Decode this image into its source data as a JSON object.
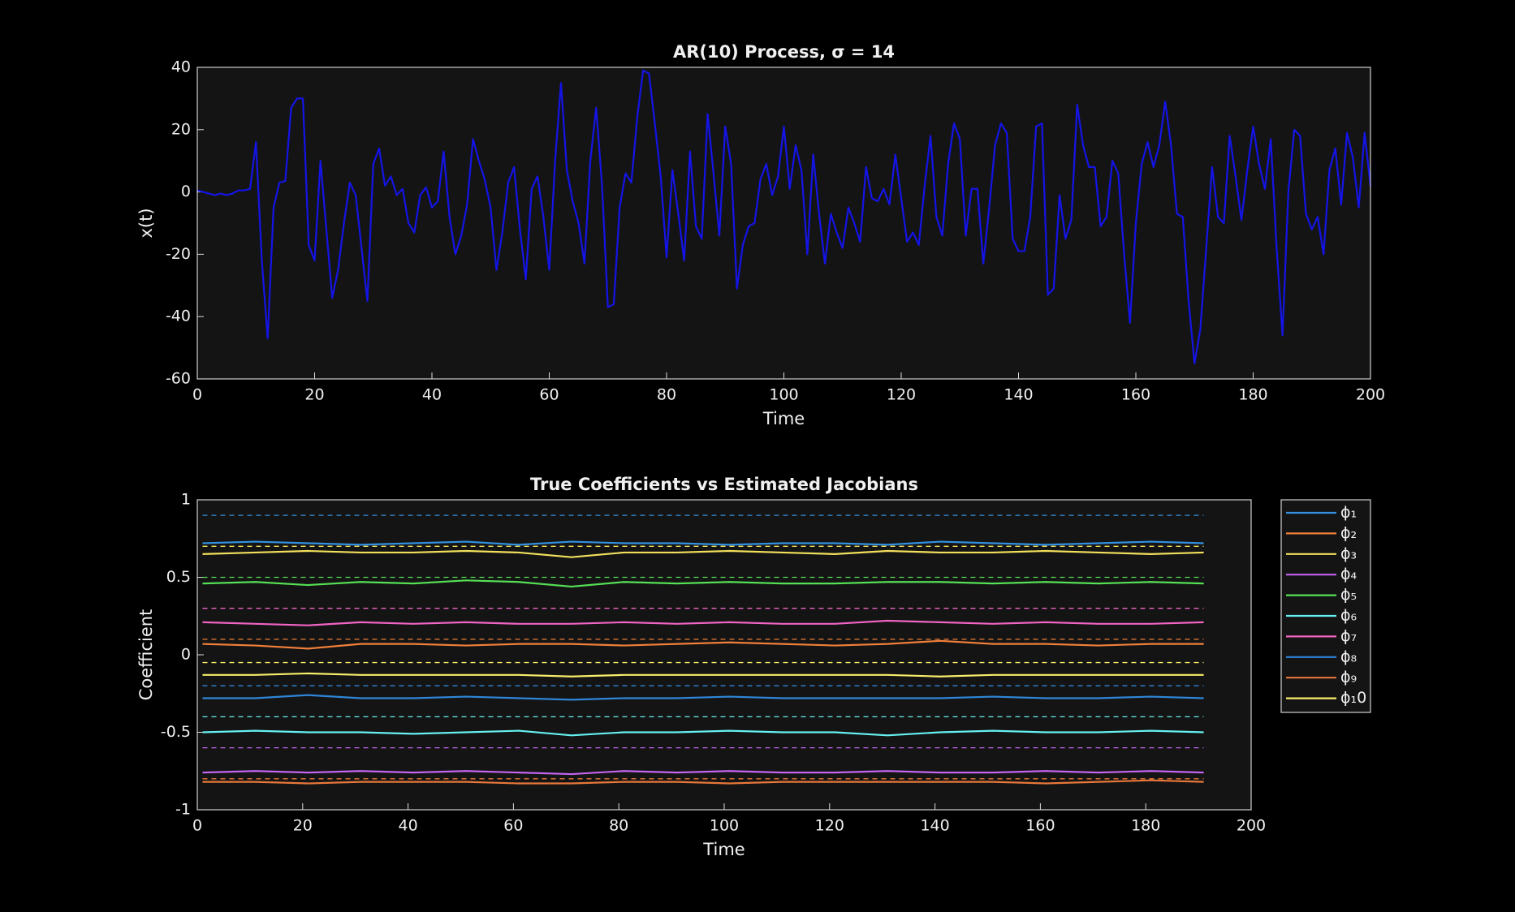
{
  "chart_data": [
    {
      "type": "line",
      "title": "AR(10)  Process,  σ  =  14",
      "xlabel": "Time",
      "ylabel": "x(t)",
      "xlim": [
        0,
        200
      ],
      "xticks": [
        0,
        20,
        40,
        60,
        80,
        100,
        120,
        140,
        160,
        180,
        200
      ],
      "ylim": [
        -60,
        40
      ],
      "yticks": [
        -60,
        -40,
        -20,
        0,
        20,
        40
      ],
      "x": [
        0,
        1,
        2,
        3,
        4,
        5,
        6,
        7,
        8,
        9,
        10,
        11,
        12,
        13,
        14,
        15,
        16,
        17,
        18,
        19,
        20,
        21,
        22,
        23,
        24,
        25,
        26,
        27,
        28,
        29,
        30,
        31,
        32,
        33,
        34,
        35,
        36,
        37,
        38,
        39,
        40,
        41,
        42,
        43,
        44,
        45,
        46,
        47,
        48,
        49,
        50,
        51,
        52,
        53,
        54,
        55,
        56,
        57,
        58,
        59,
        60,
        61,
        62,
        63,
        64,
        65,
        66,
        67,
        68,
        69,
        70,
        71,
        72,
        73,
        74,
        75,
        76,
        77,
        78,
        79,
        80,
        81,
        82,
        83,
        84,
        85,
        86,
        87,
        88,
        89,
        90,
        91,
        92,
        93,
        94,
        95,
        96,
        97,
        98,
        99,
        100,
        101,
        102,
        103,
        104,
        105,
        106,
        107,
        108,
        109,
        110,
        111,
        112,
        113,
        114,
        115,
        116,
        117,
        118,
        119,
        120,
        121,
        122,
        123,
        124,
        125,
        126,
        127,
        128,
        129,
        130,
        131,
        132,
        133,
        134,
        135,
        136,
        137,
        138,
        139,
        140,
        141,
        142,
        143,
        144,
        145,
        146,
        147,
        148,
        149,
        150,
        151,
        152,
        153,
        154,
        155,
        156,
        157,
        158,
        159,
        160,
        161,
        162,
        163,
        164,
        165,
        166,
        167,
        168,
        169,
        170,
        171,
        172,
        173,
        174,
        175,
        176,
        177,
        178,
        179,
        180,
        181,
        182,
        183,
        184,
        185,
        186,
        187,
        188,
        189,
        190,
        191,
        192,
        193,
        194,
        195,
        196,
        197,
        198,
        199,
        200
      ],
      "series": [
        {
          "color": "#1414e6",
          "values": [
            0.5,
            0,
            -0.5,
            -1,
            -0.5,
            -1,
            -0.5,
            0.5,
            0.5,
            1,
            16,
            -22,
            -47,
            -5,
            3,
            3.5,
            27,
            30,
            30,
            -17,
            -22,
            10,
            -12,
            -34,
            -25,
            -10,
            3,
            -1,
            -18,
            -35,
            9,
            14,
            2,
            5,
            -1,
            1,
            -10,
            -13,
            -1,
            1.5,
            -5,
            -3,
            13,
            -8,
            -20,
            -14,
            -4,
            17,
            10,
            4,
            -5,
            -25,
            -13,
            3,
            8,
            -12,
            -28,
            1,
            5,
            -8,
            -25,
            10,
            35,
            7,
            -3,
            -10,
            -23,
            10,
            27,
            2,
            -37,
            -36,
            -5,
            6,
            3,
            24,
            39,
            38,
            22,
            5,
            -21,
            7,
            -7,
            -22,
            13,
            -11,
            -15,
            25,
            6,
            -14,
            21,
            9,
            -31,
            -17,
            -11,
            -10,
            4,
            9,
            -1,
            5,
            21,
            1,
            15,
            7,
            -20,
            12,
            -7,
            -23,
            -7,
            -13,
            -18,
            -5,
            -10,
            -16,
            8,
            -2,
            -3,
            1,
            -4,
            12,
            -2,
            -16,
            -13,
            -17,
            2,
            18,
            -8,
            -14,
            9,
            22,
            17,
            -14,
            1,
            1,
            -23,
            -5,
            15,
            22,
            19,
            -15,
            -19,
            -19,
            -8,
            21,
            22,
            -33,
            -31,
            -1,
            -15,
            -9,
            28,
            15,
            8,
            8,
            -11,
            -8,
            10,
            6,
            -20,
            -42,
            -10,
            9,
            16,
            8,
            15,
            29,
            15,
            -7,
            -8,
            -35,
            -55,
            -44,
            -18,
            8,
            -8,
            -10,
            18,
            5,
            -9,
            7,
            21,
            9,
            1,
            17,
            -18,
            -46,
            0,
            20,
            18,
            -7,
            -12,
            -8,
            -20,
            7,
            14,
            -4,
            19,
            11,
            -5,
            19,
            2
          ]
        }
      ]
    },
    {
      "type": "line",
      "title": "True Coefficients vs Estimated Jacobians",
      "xlabel": "Time",
      "ylabel": "Coefficient",
      "xlim": [
        0,
        200
      ],
      "xticks": [
        0,
        20,
        40,
        60,
        80,
        100,
        120,
        140,
        160,
        180,
        200
      ],
      "ylim": [
        -1,
        1
      ],
      "yticks": [
        -1,
        -0.5,
        0,
        0.5,
        1
      ],
      "x": [
        1,
        11,
        21,
        31,
        41,
        51,
        61,
        71,
        81,
        91,
        101,
        111,
        121,
        131,
        141,
        151,
        161,
        171,
        181,
        191
      ],
      "series": [
        {
          "name": "ϕ₁",
          "color": "#3391e0",
          "true_value": 0.9,
          "values": [
            0.72,
            0.73,
            0.72,
            0.71,
            0.72,
            0.73,
            0.71,
            0.73,
            0.72,
            0.72,
            0.71,
            0.72,
            0.72,
            0.71,
            0.73,
            0.72,
            0.71,
            0.72,
            0.73,
            0.72
          ]
        },
        {
          "name": "ϕ₂",
          "color": "#f07f3a",
          "true_value": 0.1,
          "values": [
            0.07,
            0.06,
            0.04,
            0.07,
            0.07,
            0.06,
            0.07,
            0.07,
            0.06,
            0.07,
            0.08,
            0.07,
            0.06,
            0.07,
            0.09,
            0.07,
            0.07,
            0.06,
            0.07,
            0.07
          ]
        },
        {
          "name": "ϕ₃",
          "color": "#f2e05c",
          "true_value": 0.7,
          "values": [
            0.65,
            0.66,
            0.67,
            0.66,
            0.66,
            0.67,
            0.66,
            0.63,
            0.66,
            0.66,
            0.67,
            0.66,
            0.65,
            0.67,
            0.66,
            0.66,
            0.67,
            0.66,
            0.65,
            0.66
          ]
        },
        {
          "name": "ϕ₄",
          "color": "#c464f0",
          "true_value": -0.6,
          "values": [
            -0.76,
            -0.75,
            -0.76,
            -0.75,
            -0.76,
            -0.75,
            -0.76,
            -0.77,
            -0.75,
            -0.76,
            -0.75,
            -0.76,
            -0.76,
            -0.75,
            -0.76,
            -0.76,
            -0.75,
            -0.76,
            -0.75,
            -0.76
          ]
        },
        {
          "name": "ϕ₅",
          "color": "#55e055",
          "true_value": 0.5,
          "values": [
            0.46,
            0.47,
            0.45,
            0.47,
            0.46,
            0.48,
            0.47,
            0.44,
            0.47,
            0.46,
            0.47,
            0.46,
            0.46,
            0.47,
            0.47,
            0.46,
            0.47,
            0.46,
            0.47,
            0.46
          ]
        },
        {
          "name": "ϕ₆",
          "color": "#66f0f0",
          "true_value": -0.4,
          "values": [
            -0.5,
            -0.49,
            -0.5,
            -0.5,
            -0.51,
            -0.5,
            -0.49,
            -0.52,
            -0.5,
            -0.5,
            -0.49,
            -0.5,
            -0.5,
            -0.52,
            -0.5,
            -0.49,
            -0.5,
            -0.5,
            -0.49,
            -0.5
          ]
        },
        {
          "name": "ϕ₇",
          "color": "#f064c4",
          "true_value": 0.3,
          "values": [
            0.21,
            0.2,
            0.19,
            0.21,
            0.2,
            0.21,
            0.2,
            0.2,
            0.21,
            0.2,
            0.21,
            0.2,
            0.2,
            0.22,
            0.21,
            0.2,
            0.21,
            0.2,
            0.2,
            0.21
          ]
        },
        {
          "name": "ϕ₈",
          "color": "#2f86d8",
          "true_value": -0.2,
          "values": [
            -0.28,
            -0.28,
            -0.26,
            -0.28,
            -0.28,
            -0.27,
            -0.28,
            -0.29,
            -0.28,
            -0.28,
            -0.27,
            -0.28,
            -0.28,
            -0.28,
            -0.28,
            -0.27,
            -0.28,
            -0.28,
            -0.27,
            -0.28
          ]
        },
        {
          "name": "ϕ₉",
          "color": "#e8773a",
          "true_value": -0.8,
          "values": [
            -0.82,
            -0.82,
            -0.83,
            -0.82,
            -0.82,
            -0.82,
            -0.83,
            -0.83,
            -0.82,
            -0.82,
            -0.83,
            -0.82,
            -0.82,
            -0.82,
            -0.82,
            -0.82,
            -0.83,
            -0.82,
            -0.81,
            -0.82
          ]
        },
        {
          "name": "ϕ₁0",
          "color": "#f8ee6a",
          "true_value": -0.05,
          "values": [
            -0.13,
            -0.13,
            -0.12,
            -0.13,
            -0.13,
            -0.13,
            -0.13,
            -0.14,
            -0.13,
            -0.13,
            -0.13,
            -0.13,
            -0.13,
            -0.13,
            -0.14,
            -0.13,
            -0.13,
            -0.13,
            -0.13,
            -0.13
          ]
        }
      ]
    }
  ]
}
